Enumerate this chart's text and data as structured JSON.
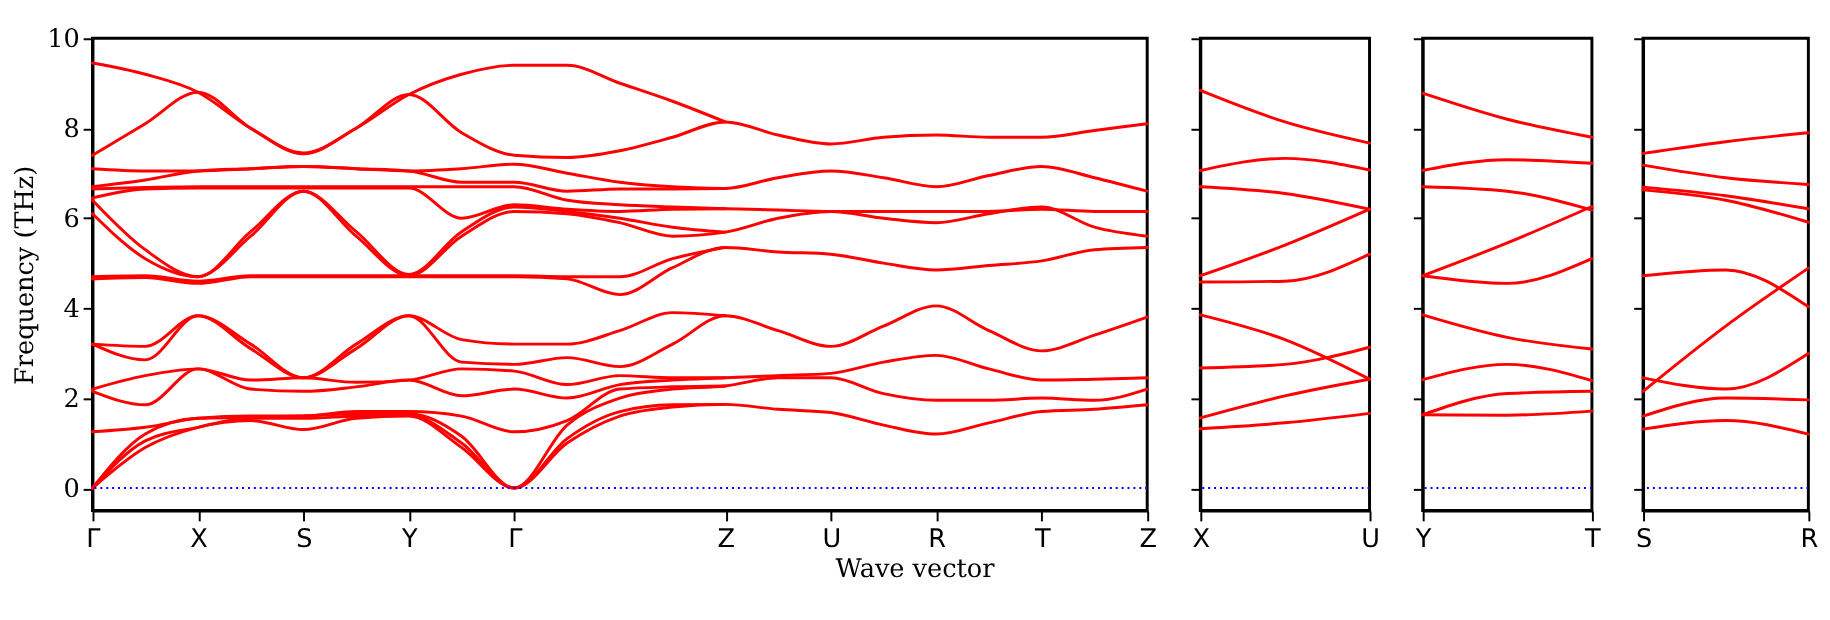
{
  "chart_data": [
    {
      "type": "line",
      "xlabel": "Wave vector",
      "ylabel": "Frequency (THz)",
      "ylim": [
        -0.5,
        10
      ],
      "yticks": [
        0,
        2,
        4,
        6,
        8,
        10
      ],
      "categories": [
        "Γ",
        null,
        "X",
        null,
        "S",
        null,
        "Y",
        null,
        "Γ",
        null,
        null,
        null,
        "Z",
        null,
        "U",
        null,
        "R",
        null,
        "T",
        null,
        "Z"
      ],
      "grid": false,
      "legend": false,
      "line_style": "solid",
      "marker": "none",
      "ref_lines": [
        {
          "axis": "y",
          "value": 0,
          "color": "#0000ff",
          "line_style": "dotted"
        }
      ],
      "series": [
        {
          "color": "#ff0000",
          "values": [
            0,
            0.9,
            1.35,
            1.5,
            1.3,
            1.55,
            1.6,
            0.9,
            0,
            1.0,
            1.6,
            1.8,
            1.86,
            1.75,
            1.68,
            1.4,
            1.2,
            1.45,
            1.7,
            1.75,
            1.85
          ]
        },
        {
          "color": "#ff0000",
          "values": [
            0,
            1.05,
            1.35,
            1.55,
            1.55,
            1.6,
            1.62,
            1.0,
            0,
            1.1,
            1.7,
            1.85,
            1.86,
            null,
            null,
            null,
            null,
            null,
            null,
            null,
            null
          ]
        },
        {
          "color": "#ff0000",
          "values": [
            0,
            1.2,
            1.55,
            1.57,
            1.6,
            1.65,
            1.65,
            1.15,
            0,
            1.4,
            2.0,
            2.2,
            2.27,
            2.45,
            2.45,
            2.1,
            1.95,
            1.95,
            2.0,
            1.95,
            2.2
          ]
        },
        {
          "color": "#ff0000",
          "values": [
            1.25,
            1.35,
            1.55,
            1.6,
            1.6,
            1.7,
            1.7,
            1.6,
            1.25,
            1.5,
            2.2,
            2.25,
            2.27,
            null,
            null,
            null,
            null,
            null,
            null,
            null,
            null
          ]
        },
        {
          "color": "#ff0000",
          "values": [
            2.15,
            1.85,
            2.65,
            2.2,
            2.15,
            2.25,
            2.4,
            2.05,
            2.2,
            2.0,
            2.3,
            2.4,
            2.45,
            2.5,
            2.55,
            2.8,
            2.95,
            2.65,
            2.4,
            2.42,
            2.45
          ]
        },
        {
          "color": "#ff0000",
          "values": [
            2.2,
            2.5,
            2.65,
            2.4,
            2.45,
            2.35,
            2.4,
            2.65,
            2.6,
            2.3,
            2.5,
            2.45,
            2.45,
            null,
            null,
            null,
            null,
            null,
            null,
            null,
            null
          ]
        },
        {
          "color": "#ff0000",
          "values": [
            3.2,
            2.85,
            3.83,
            3.1,
            2.45,
            3.1,
            3.83,
            2.8,
            2.75,
            2.9,
            2.7,
            3.2,
            3.83,
            3.5,
            3.15,
            3.6,
            4.05,
            3.5,
            3.05,
            3.4,
            3.8
          ]
        },
        {
          "color": "#ff0000",
          "values": [
            3.2,
            3.15,
            3.83,
            3.2,
            2.45,
            3.2,
            3.83,
            3.3,
            3.2,
            3.2,
            3.5,
            3.9,
            3.83,
            null,
            null,
            null,
            null,
            null,
            null,
            null,
            null
          ]
        },
        {
          "color": "#ff0000",
          "values": [
            4.65,
            4.68,
            4.55,
            4.7,
            4.7,
            4.7,
            4.7,
            4.7,
            4.7,
            4.65,
            4.3,
            4.9,
            5.35,
            5.25,
            5.2,
            5.0,
            4.85,
            4.95,
            5.05,
            5.3,
            5.35
          ]
        },
        {
          "color": "#ff0000",
          "values": [
            4.7,
            4.72,
            4.6,
            4.72,
            4.72,
            4.72,
            4.72,
            4.72,
            4.72,
            4.7,
            4.7,
            5.1,
            5.35,
            null,
            null,
            null,
            null,
            null,
            null,
            null,
            null
          ]
        },
        {
          "color": "#ff0000",
          "values": [
            6.1,
            5.1,
            4.7,
            5.6,
            6.6,
            5.6,
            4.72,
            5.6,
            6.15,
            6.1,
            5.9,
            5.6,
            5.69,
            6.0,
            6.15,
            6.0,
            5.9,
            6.1,
            6.25,
            5.8,
            5.6
          ]
        },
        {
          "color": "#ff0000",
          "values": [
            6.4,
            5.3,
            4.7,
            5.7,
            6.6,
            5.7,
            4.75,
            5.7,
            6.25,
            6.15,
            6.0,
            5.8,
            5.69,
            null,
            null,
            null,
            null,
            null,
            null,
            null,
            null
          ]
        },
        {
          "color": "#ff0000",
          "values": [
            6.45,
            6.65,
            6.67,
            6.67,
            6.67,
            6.67,
            6.67,
            6.0,
            6.3,
            6.2,
            6.15,
            6.2,
            6.21,
            6.18,
            6.15,
            6.15,
            6.15,
            6.15,
            6.2,
            6.15,
            6.15
          ]
        },
        {
          "color": "#ff0000",
          "values": [
            6.65,
            6.68,
            6.7,
            6.7,
            6.7,
            6.7,
            6.7,
            6.7,
            6.7,
            6.4,
            6.3,
            6.25,
            6.21,
            null,
            null,
            null,
            null,
            null,
            null,
            null,
            null
          ]
        },
        {
          "color": "#ff0000",
          "values": [
            6.7,
            6.85,
            7.05,
            7.1,
            7.15,
            7.1,
            7.05,
            6.8,
            6.8,
            6.6,
            6.65,
            6.65,
            6.66,
            6.9,
            7.05,
            6.9,
            6.7,
            6.95,
            7.15,
            6.9,
            6.6
          ]
        },
        {
          "color": "#ff0000",
          "values": [
            7.1,
            7.05,
            7.05,
            7.1,
            7.15,
            7.1,
            7.05,
            7.1,
            7.2,
            7.0,
            6.8,
            6.7,
            6.66,
            null,
            null,
            null,
            null,
            null,
            null,
            null,
            null
          ]
        },
        {
          "color": "#ff0000",
          "values": [
            7.4,
            8.1,
            8.8,
            8.0,
            7.43,
            8.0,
            8.75,
            7.9,
            7.4,
            7.35,
            7.5,
            7.8,
            8.14,
            7.85,
            7.65,
            7.8,
            7.85,
            7.8,
            7.8,
            7.95,
            8.1
          ]
        },
        {
          "color": "#ff0000",
          "values": [
            9.45,
            9.2,
            8.8,
            8.0,
            7.45,
            8.0,
            8.75,
            9.2,
            9.4,
            9.4,
            9.0,
            8.6,
            8.14,
            null,
            null,
            null,
            null,
            null,
            null,
            null,
            null
          ]
        }
      ]
    },
    {
      "type": "line",
      "ylim": [
        -0.5,
        10
      ],
      "yticks": [
        0,
        2,
        4,
        6,
        8,
        10
      ],
      "categories": [
        "X",
        null,
        "U"
      ],
      "tick_labels": "x",
      "grid": false,
      "legend": false,
      "line_style": "solid",
      "marker": "none",
      "ref_lines": [
        {
          "axis": "y",
          "value": 0,
          "color": "#0000ff",
          "line_style": "dotted"
        }
      ],
      "series": [
        {
          "color": "#ff0000",
          "values": [
            1.32,
            1.45,
            1.66
          ]
        },
        {
          "color": "#ff0000",
          "values": [
            1.56,
            2.05,
            2.42
          ]
        },
        {
          "color": "#ff0000",
          "values": [
            2.67,
            2.75,
            3.13
          ]
        },
        {
          "color": "#ff0000",
          "values": [
            3.85,
            3.3,
            2.42
          ]
        },
        {
          "color": "#ff0000",
          "values": [
            4.58,
            4.6,
            5.2
          ]
        },
        {
          "color": "#ff0000",
          "values": [
            4.72,
            5.4,
            6.2
          ]
        },
        {
          "color": "#ff0000",
          "values": [
            6.7,
            6.55,
            6.2
          ]
        },
        {
          "color": "#ff0000",
          "values": [
            7.06,
            7.33,
            7.07
          ]
        },
        {
          "color": "#ff0000",
          "values": [
            8.84,
            8.14,
            7.67
          ]
        }
      ]
    },
    {
      "type": "line",
      "ylim": [
        -0.5,
        10
      ],
      "yticks": [
        0,
        2,
        4,
        6,
        8,
        10
      ],
      "categories": [
        "Y",
        null,
        "T"
      ],
      "tick_labels": "x",
      "grid": false,
      "legend": false,
      "line_style": "solid",
      "marker": "none",
      "ref_lines": [
        {
          "axis": "y",
          "value": 0,
          "color": "#0000ff",
          "line_style": "dotted"
        }
      ],
      "series": [
        {
          "color": "#ff0000",
          "values": [
            1.63,
            1.62,
            1.71
          ]
        },
        {
          "color": "#ff0000",
          "values": [
            1.63,
            2.1,
            2.15
          ]
        },
        {
          "color": "#ff0000",
          "values": [
            2.41,
            2.75,
            2.39
          ]
        },
        {
          "color": "#ff0000",
          "values": [
            3.85,
            3.35,
            3.09
          ]
        },
        {
          "color": "#ff0000",
          "values": [
            4.72,
            4.55,
            5.1
          ]
        },
        {
          "color": "#ff0000",
          "values": [
            4.72,
            5.45,
            6.26
          ]
        },
        {
          "color": "#ff0000",
          "values": [
            6.7,
            6.6,
            6.18
          ]
        },
        {
          "color": "#ff0000",
          "values": [
            7.06,
            7.3,
            7.22
          ]
        },
        {
          "color": "#ff0000",
          "values": [
            8.78,
            8.2,
            7.8
          ]
        }
      ]
    },
    {
      "type": "line",
      "ylim": [
        -0.5,
        10
      ],
      "yticks": [
        0,
        2,
        4,
        6,
        8,
        10
      ],
      "categories": [
        "S",
        null,
        "R"
      ],
      "tick_labels": "x",
      "grid": false,
      "legend": false,
      "line_style": "solid",
      "marker": "none",
      "ref_lines": [
        {
          "axis": "y",
          "value": 0,
          "color": "#0000ff",
          "line_style": "dotted"
        }
      ],
      "series": [
        {
          "color": "#ff0000",
          "values": [
            1.31,
            1.5,
            1.2
          ]
        },
        {
          "color": "#ff0000",
          "values": [
            1.6,
            2.0,
            1.96
          ]
        },
        {
          "color": "#ff0000",
          "values": [
            2.45,
            2.2,
            2.99
          ]
        },
        {
          "color": "#ff0000",
          "values": [
            2.15,
            3.6,
            4.89
          ]
        },
        {
          "color": "#ff0000",
          "values": [
            4.72,
            4.85,
            4.03
          ]
        },
        {
          "color": "#ff0000",
          "values": [
            6.63,
            6.4,
            5.91
          ]
        },
        {
          "color": "#ff0000",
          "values": [
            6.69,
            6.5,
            6.21
          ]
        },
        {
          "color": "#ff0000",
          "values": [
            7.18,
            6.9,
            6.75
          ]
        },
        {
          "color": "#ff0000",
          "values": [
            7.44,
            7.7,
            7.9
          ]
        }
      ]
    }
  ]
}
